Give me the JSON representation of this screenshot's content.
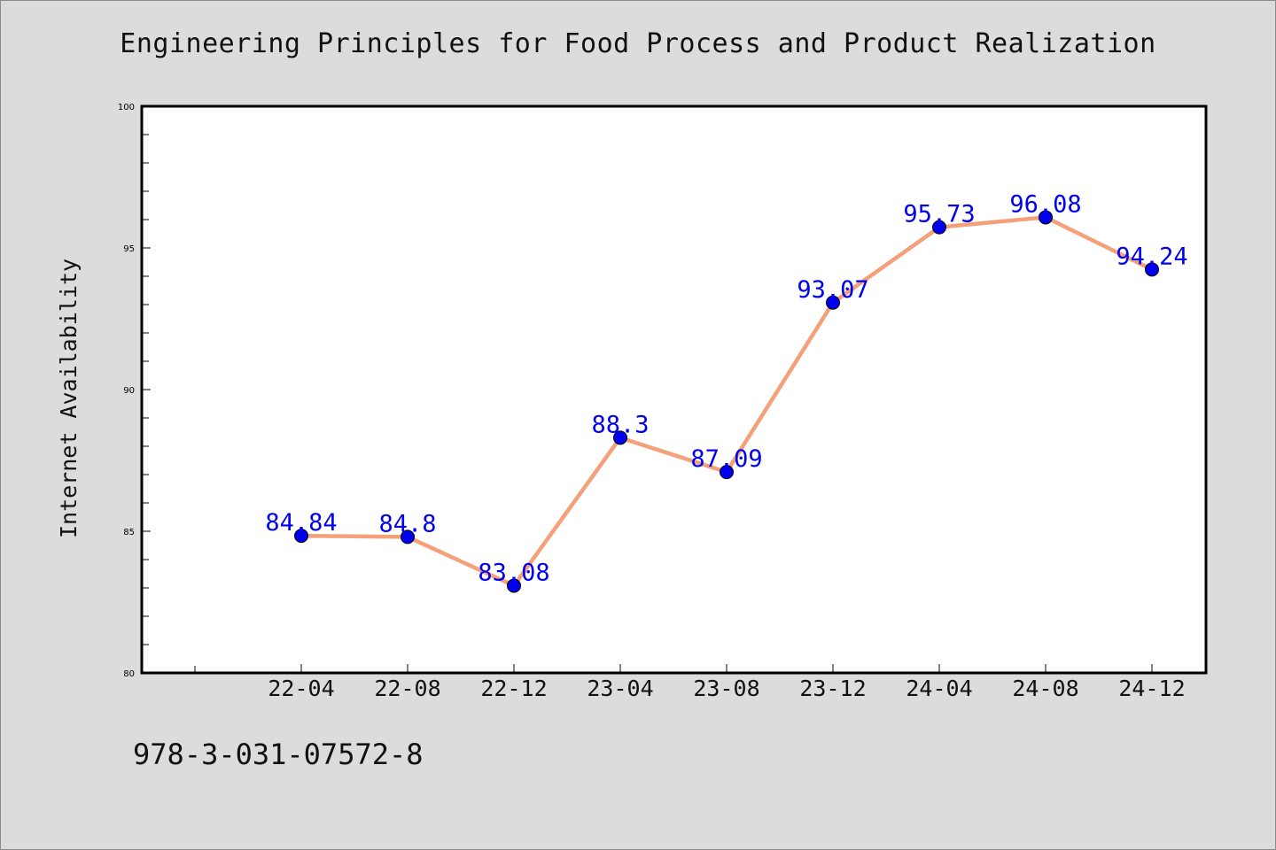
{
  "chart_data": {
    "type": "line",
    "title": "Engineering Principles for Food Process and Product Realization",
    "xlabel": "",
    "ylabel": "Internet Availability",
    "categories": [
      "22-04",
      "22-08",
      "22-12",
      "23-04",
      "23-08",
      "23-12",
      "24-04",
      "24-08",
      "24-12"
    ],
    "series": [
      {
        "values": [
          84.84,
          84.8,
          83.08,
          88.3,
          87.09,
          93.07,
          95.73,
          96.08,
          94.24
        ],
        "data_labels": [
          "84.84",
          "84.8",
          "83.08",
          "88.3",
          "87.09",
          "93.07",
          "95.73",
          "96.08",
          "94.24"
        ]
      }
    ],
    "ylim": [
      80,
      100
    ],
    "y_ticks": [
      80,
      85,
      90,
      95,
      100
    ],
    "y_tick_labels": [
      "80",
      "85",
      "90",
      "95",
      "100"
    ],
    "grid": false,
    "colors": {
      "line": "#f4a07a",
      "marker": "#0000ee",
      "data_label": "#0000ee",
      "plot_bg": "#ffffff",
      "page_bg": "#dcdcdc"
    }
  },
  "footer": {
    "isbn": "978-3-031-07572-8"
  }
}
